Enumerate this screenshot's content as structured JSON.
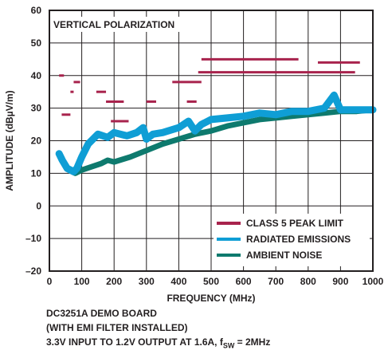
{
  "chart_data": {
    "type": "line",
    "title": "VERTICAL POLARIZATION",
    "xlabel": "FREQUENCY (MHz)",
    "ylabel": "AMPLITUDE (dBµV/m)",
    "xlim": [
      0,
      1000
    ],
    "ylim": [
      -20,
      60
    ],
    "xticks": [
      0,
      100,
      200,
      300,
      400,
      500,
      600,
      700,
      800,
      900,
      1000
    ],
    "yticks": [
      -20,
      -10,
      0,
      10,
      20,
      30,
      40,
      50,
      60
    ],
    "xtick_labels": [
      "0",
      "100",
      "200",
      "300",
      "400",
      "500",
      "600",
      "700",
      "800",
      "900",
      "1000"
    ],
    "ytick_labels": [
      "–20",
      "–10",
      "0",
      "10",
      "20",
      "30",
      "40",
      "50",
      "60"
    ],
    "grid": true,
    "legend_position": "bottom-right",
    "colors": {
      "limit": "#a8234d",
      "emissions": "#0f9ed5",
      "ambient": "#0e7a6e"
    },
    "limit_segments": [
      {
        "x": [
          30,
          45
        ],
        "y": 40
      },
      {
        "x": [
          38,
          65
        ],
        "y": 28
      },
      {
        "x": [
          65,
          75
        ],
        "y": 35
      },
      {
        "x": [
          75,
          95
        ],
        "y": 38
      },
      {
        "x": [
          145,
          175
        ],
        "y": 35
      },
      {
        "x": [
          175,
          230
        ],
        "y": 32
      },
      {
        "x": [
          190,
          245
        ],
        "y": 26
      },
      {
        "x": [
          300,
          330
        ],
        "y": 32
      },
      {
        "x": [
          380,
          470
        ],
        "y": 38
      },
      {
        "x": [
          425,
          455
        ],
        "y": 32
      },
      {
        "x": [
          460,
          945
        ],
        "y": 41
      },
      {
        "x": [
          470,
          770
        ],
        "y": 45
      },
      {
        "x": [
          830,
          960
        ],
        "y": 44
      }
    ],
    "series": [
      {
        "name": "CLASS 5 PEAK LIMIT",
        "values": [
          40,
          28,
          35,
          38,
          35,
          32,
          26,
          32,
          38,
          32,
          41,
          45,
          44
        ]
      },
      {
        "name": "RADIATED EMISSIONS",
        "x": [
          30,
          40,
          55,
          75,
          85,
          100,
          120,
          150,
          180,
          200,
          240,
          270,
          290,
          300,
          320,
          350,
          400,
          430,
          450,
          470,
          500,
          550,
          600,
          650,
          700,
          750,
          800,
          850,
          880,
          900,
          950,
          1000
        ],
        "values": [
          16,
          14,
          11.5,
          10.5,
          11.5,
          15,
          19,
          22,
          21,
          22.5,
          21.5,
          22.5,
          24,
          20.5,
          22,
          22.5,
          24,
          26,
          23,
          25,
          26.5,
          27,
          27.5,
          28.5,
          28,
          29,
          29,
          30,
          34,
          29.5,
          29.5,
          29.5
        ]
      },
      {
        "name": "AMBIENT NOISE",
        "x": [
          60,
          80,
          100,
          130,
          160,
          180,
          200,
          250,
          300,
          350,
          400,
          450,
          500,
          550,
          600,
          650,
          700,
          750,
          800,
          850,
          900,
          950,
          1000
        ],
        "values": [
          11,
          10,
          11,
          12,
          13,
          14,
          13.5,
          15,
          17,
          19,
          20.5,
          22,
          23,
          24.5,
          25.5,
          26.5,
          27,
          27.5,
          28,
          28.5,
          29,
          29,
          29.5
        ]
      }
    ]
  },
  "caption": {
    "line1": "DC3251A DEMO BOARD",
    "line2": "(WITH EMI FILTER INSTALLED)",
    "line3_prefix": "3.3V INPUT TO 1.2V OUTPUT AT 1.6A, f",
    "line3_sub": "SW",
    "line3_suffix": " = 2MHz"
  }
}
